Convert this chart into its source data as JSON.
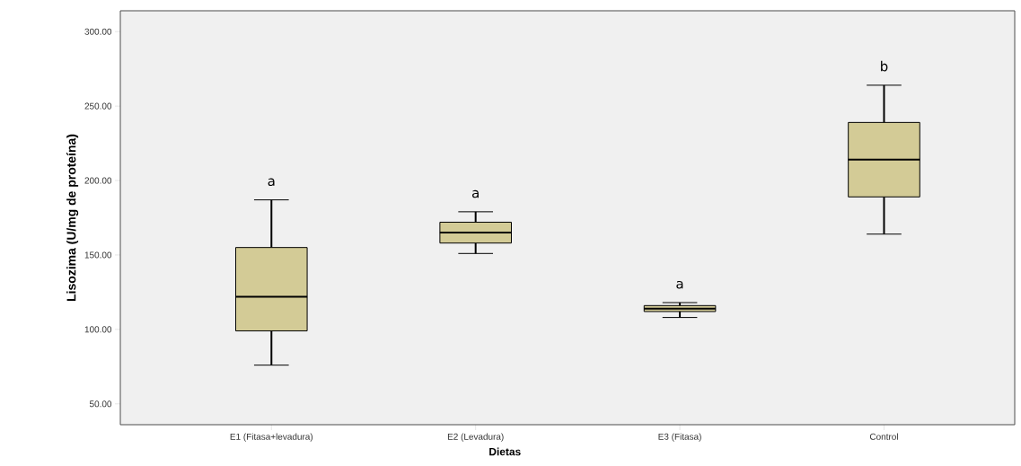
{
  "chart_data": {
    "type": "box",
    "xlabel": "Dietas",
    "ylabel": "Lisozima  (U/mg de proteína)",
    "categories": [
      "E1 (Fitasa+levadura)",
      "E2 (Levadura)",
      "E3 (Fitasa)",
      "Control"
    ],
    "color": "#d3cb96",
    "boxes": [
      {
        "low": 76,
        "q1": 99,
        "median": 122,
        "q3": 155,
        "high": 187
      },
      {
        "low": 151,
        "q1": 158,
        "median": 165,
        "q3": 172,
        "high": 179
      },
      {
        "low": 108,
        "q1": 112,
        "median": 114,
        "q3": 116,
        "high": 118
      },
      {
        "low": 164,
        "q1": 189,
        "median": 214,
        "q3": 239,
        "high": 264
      }
    ],
    "ylim": [
      36,
      314
    ],
    "yticks": [
      {
        "value": 50,
        "label": "50.00"
      },
      {
        "value": 100,
        "label": "100.00"
      },
      {
        "value": 150,
        "label": "150.00"
      },
      {
        "value": 200,
        "label": "200.00"
      },
      {
        "value": 250,
        "label": "250.00"
      },
      {
        "value": 300,
        "label": "300.00"
      }
    ],
    "grid": false,
    "annotations": [
      "a",
      "a",
      "a",
      "b"
    ]
  }
}
